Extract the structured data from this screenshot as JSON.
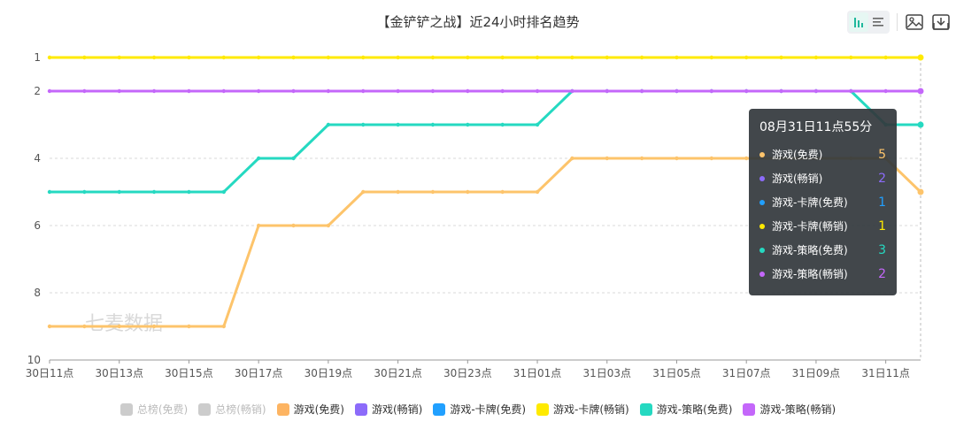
{
  "title": "【金铲铲之战】近24小时排名趋势",
  "chart_data": {
    "type": "line",
    "x": [
      "30日11点",
      "30日12点",
      "30日13点",
      "30日14点",
      "30日15点",
      "30日16点",
      "30日17点",
      "30日18点",
      "30日19点",
      "30日20点",
      "30日21点",
      "30日22点",
      "30日23点",
      "31日00点",
      "31日01点",
      "31日02点",
      "31日03点",
      "31日04点",
      "31日05点",
      "31日06点",
      "31日07点",
      "31日08点",
      "31日09点",
      "31日10点",
      "31日11点",
      "31日12点"
    ],
    "x_tick_labels": [
      "30日11点",
      "30日13点",
      "30日15点",
      "30日17点",
      "30日19点",
      "30日21点",
      "30日23点",
      "31日01点",
      "31日03点",
      "31日05点",
      "31日07点",
      "31日09点",
      "31日11点"
    ],
    "y_ticks": [
      1,
      2,
      4,
      6,
      8,
      10
    ],
    "ylim": [
      1,
      10
    ],
    "y_inverted": true,
    "series": [
      {
        "name": "游戏(免费)",
        "color": "#fdc46b",
        "values": [
          9,
          9,
          9,
          9,
          9,
          9,
          6,
          6,
          6,
          5,
          5,
          5,
          5,
          5,
          5,
          4,
          4,
          4,
          4,
          4,
          4,
          4,
          4,
          4,
          4,
          5
        ]
      },
      {
        "name": "游戏-策略(免费)",
        "color": "#25d9c1",
        "values": [
          5,
          5,
          5,
          5,
          5,
          5,
          4,
          4,
          3,
          3,
          3,
          3,
          3,
          3,
          3,
          2,
          2,
          2,
          2,
          2,
          2,
          2,
          2,
          2,
          3,
          3
        ]
      },
      {
        "name": "游戏-策略(畅销)",
        "color": "#c467fa",
        "values": [
          2,
          2,
          2,
          2,
          2,
          2,
          2,
          2,
          2,
          2,
          2,
          2,
          2,
          2,
          2,
          2,
          2,
          2,
          2,
          2,
          2,
          2,
          2,
          2,
          2,
          2
        ]
      },
      {
        "name": "游戏-卡牌(畅销)",
        "color": "#ffea00",
        "values": [
          1,
          1,
          1,
          1,
          1,
          1,
          1,
          1,
          1,
          1,
          1,
          1,
          1,
          1,
          1,
          1,
          1,
          1,
          1,
          1,
          1,
          1,
          1,
          1,
          1,
          1
        ]
      }
    ]
  },
  "watermark": "七麦数据",
  "tooltip": {
    "title": "08月31日11点55分",
    "rows": [
      {
        "name": "游戏(免费)",
        "value": "5",
        "color": "#fdc46b"
      },
      {
        "name": "游戏(畅销)",
        "value": "2",
        "color": "#8c6bfa"
      },
      {
        "name": "游戏-卡牌(免费)",
        "value": "1",
        "color": "#21a0ff"
      },
      {
        "name": "游戏-卡牌(畅销)",
        "value": "1",
        "color": "#ffea00"
      },
      {
        "name": "游戏-策略(免费)",
        "value": "3",
        "color": "#25d9c1"
      },
      {
        "name": "游戏-策略(畅销)",
        "value": "2",
        "color": "#c467fa"
      }
    ]
  },
  "legend": [
    {
      "name": "总榜(免费)",
      "color": "#cccccc",
      "active": false
    },
    {
      "name": "总榜(畅销)",
      "color": "#cccccc",
      "active": false
    },
    {
      "name": "游戏(免费)",
      "color": "#fdb462",
      "active": true
    },
    {
      "name": "游戏(畅销)",
      "color": "#8c6bfa",
      "active": true
    },
    {
      "name": "游戏-卡牌(免费)",
      "color": "#21a0ff",
      "active": true
    },
    {
      "name": "游戏-卡牌(畅销)",
      "color": "#ffea00",
      "active": true
    },
    {
      "name": "游戏-策略(免费)",
      "color": "#25d9c1",
      "active": true
    },
    {
      "name": "游戏-策略(畅销)",
      "color": "#c467fa",
      "active": true
    }
  ],
  "toolbar": {
    "buttons": [
      {
        "name": "bar-chart-icon",
        "active": true
      },
      {
        "name": "list-icon",
        "active": false
      },
      {
        "name": "save-image-icon",
        "active": false
      },
      {
        "name": "download-icon",
        "active": false
      }
    ]
  }
}
